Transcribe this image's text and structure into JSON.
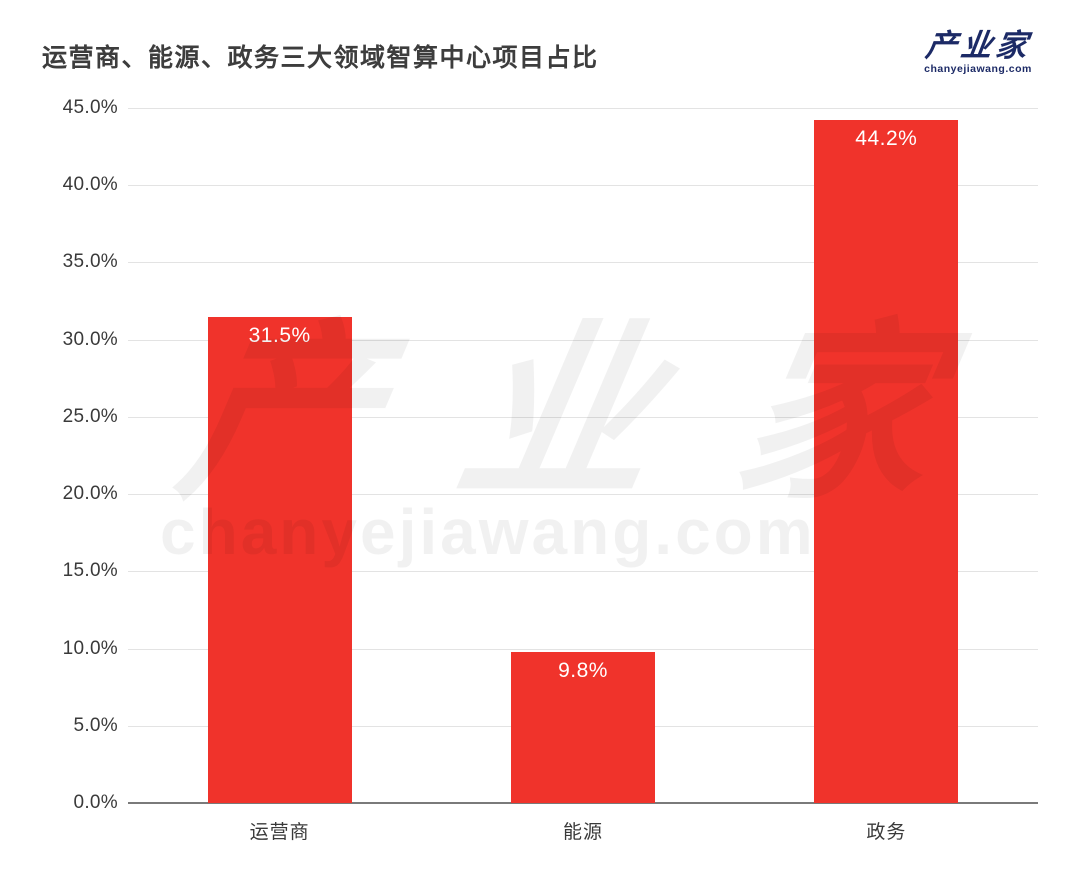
{
  "header": {
    "title": "运营商、能源、政务三大领域智算中心项目占比"
  },
  "logo": {
    "name": "产业家",
    "domain": "chanyejiawang.com"
  },
  "watermark": {
    "name": "产业家",
    "domain": "chanyejiawang.com"
  },
  "chart_data": {
    "type": "bar",
    "title": "运营商、能源、政务三大领域智算中心项目占比",
    "categories": [
      "运营商",
      "能源",
      "政务"
    ],
    "values": [
      31.5,
      9.8,
      44.2
    ],
    "value_labels": [
      "31.5%",
      "9.8%",
      "44.2%"
    ],
    "xlabel": "",
    "ylabel": "",
    "ylim": [
      0,
      45
    ],
    "yticks": [
      {
        "value": 45,
        "label": "45.0%"
      },
      {
        "value": 40,
        "label": "40.0%"
      },
      {
        "value": 35,
        "label": "35.0%"
      },
      {
        "value": 30,
        "label": "30.0%"
      },
      {
        "value": 25,
        "label": "25.0%"
      },
      {
        "value": 20,
        "label": "20.0%"
      },
      {
        "value": 15,
        "label": "15.0%"
      },
      {
        "value": 10,
        "label": "10.0%"
      },
      {
        "value": 5,
        "label": "5.0%"
      },
      {
        "value": 0,
        "label": "0.0%"
      }
    ],
    "grid": true,
    "legend": "none",
    "colors": {
      "bar": "#f0332b",
      "bar_value_label": "#ffffff",
      "gridline": "#e3e3e3",
      "baseline": "#7a7a7a",
      "tick_text": "#3a3a3a"
    }
  }
}
